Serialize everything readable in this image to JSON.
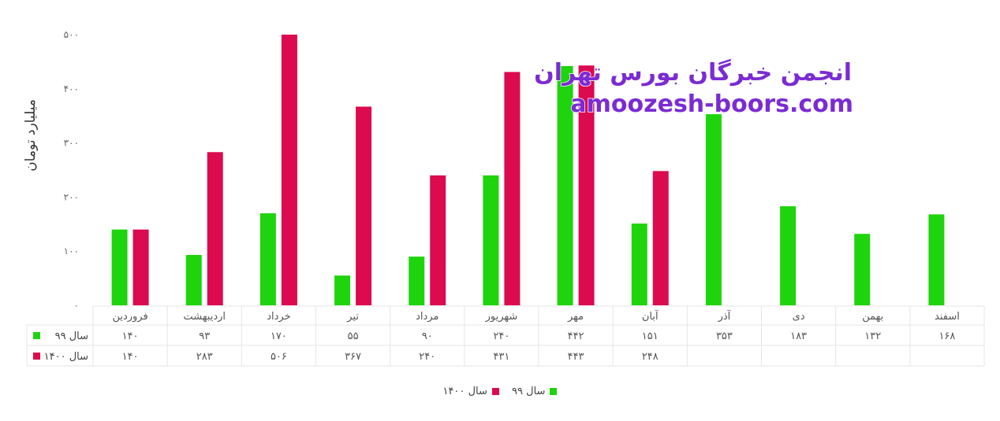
{
  "colors": {
    "s99": "#1ed40c",
    "s1400": "#dc0a4f",
    "grid": "#e6e6e6"
  },
  "watermark": {
    "line1": "انجمن خبرگان بورس تهران",
    "line2": "amoozesh-boors.com"
  },
  "chart_data": {
    "type": "bar",
    "ylabel": "میلیارد تومان",
    "ylim": [
      0,
      500
    ],
    "yticks": [
      0,
      100,
      200,
      300,
      400,
      500
    ],
    "ytick_labels": [
      "۰",
      "۱۰۰",
      "۲۰۰",
      "۳۰۰",
      "۴۰۰",
      "۵۰۰"
    ],
    "categories": [
      "فروردین",
      "اردیبهشت",
      "خرداد",
      "تیر",
      "مرداد",
      "شهریور",
      "مهر",
      "آبان",
      "آذر",
      "دی",
      "بهمن",
      "اسفند"
    ],
    "series": [
      {
        "name": "سال ۹۹",
        "values": [
          140,
          93,
          170,
          55,
          90,
          240,
          442,
          151,
          353,
          183,
          132,
          168
        ],
        "labels": [
          "۱۴۰",
          "۹۳",
          "۱۷۰",
          "۵۵",
          "۹۰",
          "۲۴۰",
          "۴۴۲",
          "۱۵۱",
          "۳۵۳",
          "۱۸۳",
          "۱۳۲",
          "۱۶۸"
        ]
      },
      {
        "name": "سال ۱۴۰۰",
        "values": [
          140,
          283,
          506,
          367,
          240,
          431,
          443,
          248,
          null,
          null,
          null,
          null
        ],
        "labels": [
          "۱۴۰",
          "۲۸۳",
          "۵۰۶",
          "۳۶۷",
          "۲۴۰",
          "۴۳۱",
          "۴۴۳",
          "۲۴۸",
          "",
          "",
          "",
          ""
        ]
      }
    ],
    "legend_position": "bottom-center",
    "grid": false
  }
}
